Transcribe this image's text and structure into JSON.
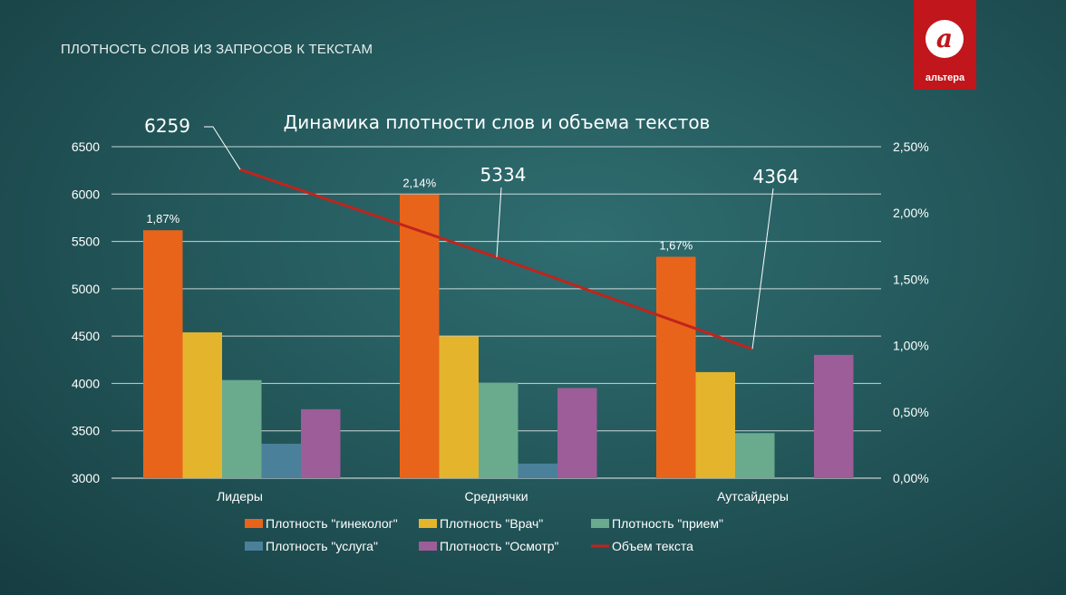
{
  "slide": {
    "title": "ПЛОТНОСТЬ СЛОВ ИЗ ЗАПРОСОВ К ТЕКСТАМ"
  },
  "logo": {
    "glyph": "а",
    "text": "альтера"
  },
  "colors": {
    "gynecologist": "#e8641b",
    "doctor": "#e4b52c",
    "reception": "#6aab8e",
    "service": "#4a8099",
    "exam": "#9d5d98",
    "volume": "#c0241c"
  },
  "chart_data": {
    "type": "bar",
    "title": "Динамика плотности слов и объема текстов",
    "categories": [
      "Лидеры",
      "Среднячки",
      "Аутсайдеры"
    ],
    "ylim": [
      3000,
      6500
    ],
    "yticks": [
      "3000",
      "3500",
      "4000",
      "4500",
      "5000",
      "5500",
      "6000",
      "6500"
    ],
    "y2lim": [
      0,
      2.5
    ],
    "y2ticks": [
      "0,00%",
      "0,50%",
      "1,00%",
      "1,50%",
      "2,00%",
      "2,50%"
    ],
    "grid": true,
    "legend_position": "bottom",
    "series": [
      {
        "name": "Плотность \"гинеколог\"",
        "color_key": "gynecologist",
        "axis": "secondary",
        "values": [
          1.87,
          2.14,
          1.67
        ],
        "labels": [
          "1,87%",
          "2,14%",
          "1,67%"
        ]
      },
      {
        "name": "Плотность \"Врач\"",
        "color_key": "doctor",
        "axis": "secondary",
        "values": [
          1.1,
          1.07,
          0.8
        ]
      },
      {
        "name": "Плотность \"прием\"",
        "color_key": "reception",
        "axis": "secondary",
        "values": [
          0.74,
          0.72,
          0.34
        ]
      },
      {
        "name": "Плотность \"услуга\"",
        "color_key": "service",
        "axis": "secondary",
        "values": [
          0.26,
          0.11,
          null
        ]
      },
      {
        "name": "Плотность \"Осмотр\"",
        "color_key": "exam",
        "axis": "secondary",
        "values": [
          0.52,
          0.68,
          0.93
        ]
      },
      {
        "name": "Объем текста",
        "color_key": "volume",
        "axis": "primary",
        "type": "line",
        "values": [
          6259,
          5334,
          4364
        ],
        "labels": [
          "6259",
          "5334",
          "4364"
        ]
      }
    ]
  }
}
